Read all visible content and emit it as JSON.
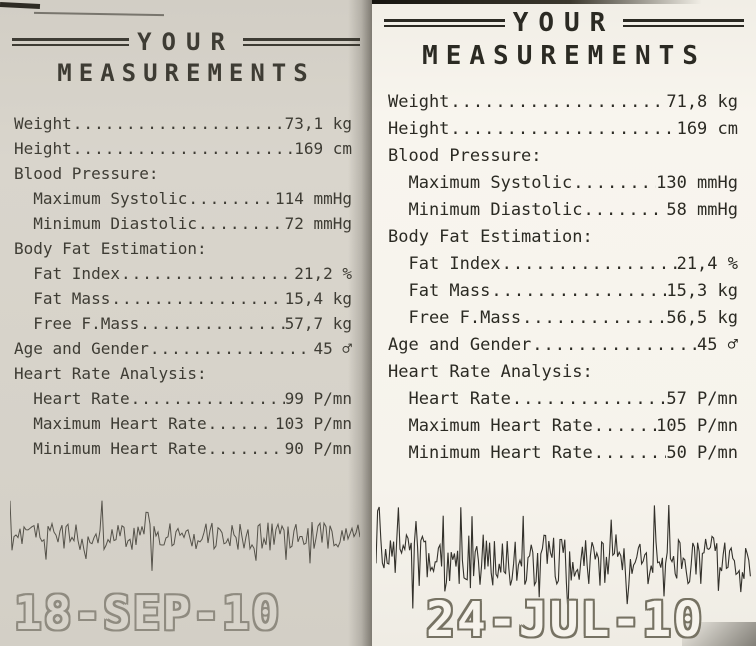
{
  "left_receipt": {
    "header": {
      "line1": "YOUR",
      "line2": "MEASUREMENTS"
    },
    "rows": [
      {
        "label": "Weight",
        "value": "73,1 kg",
        "indent": 0
      },
      {
        "label": "Height",
        "value": "169 cm",
        "indent": 0
      },
      {
        "label": "Blood Pressure:",
        "value": "",
        "indent": 0
      },
      {
        "label": "Maximum Systolic",
        "value": "114 mmHg",
        "indent": 1
      },
      {
        "label": "Minimum Diastolic",
        "value": "72 mmHg",
        "indent": 1
      },
      {
        "label": "Body Fat Estimation:",
        "value": "",
        "indent": 0
      },
      {
        "label": "Fat Index",
        "value": "21,2 %",
        "indent": 1
      },
      {
        "label": "Fat Mass",
        "value": "15,4 kg",
        "indent": 1
      },
      {
        "label": "Free F.Mass",
        "value": "57,7 kg",
        "indent": 1
      },
      {
        "label": "Age and Gender",
        "value": "45 ♂",
        "indent": 0
      },
      {
        "label": "Heart Rate Analysis:",
        "value": "",
        "indent": 0
      },
      {
        "label": "Heart Rate",
        "value": "99 P/mn",
        "indent": 1
      },
      {
        "label": "Maximum Heart Rate",
        "value": "103 P/mn",
        "indent": 1
      },
      {
        "label": "Minimum Heart Rate",
        "value": "90 P/mn",
        "indent": 1
      }
    ],
    "date": "18-SEP-10"
  },
  "right_receipt": {
    "header": {
      "line1": "YOUR",
      "line2": "MEASUREMENTS"
    },
    "rows": [
      {
        "label": "Weight",
        "value": "71,8 kg",
        "indent": 0
      },
      {
        "label": "Height",
        "value": "169 cm",
        "indent": 0
      },
      {
        "label": "Blood Pressure:",
        "value": "",
        "indent": 0
      },
      {
        "label": "Maximum Systolic",
        "value": "130 mmHg",
        "indent": 1
      },
      {
        "label": "Minimum Diastolic",
        "value": "58 mmHg",
        "indent": 1
      },
      {
        "label": "Body Fat Estimation:",
        "value": "",
        "indent": 0
      },
      {
        "label": "Fat Index",
        "value": "21,4 %",
        "indent": 1
      },
      {
        "label": "Fat Mass",
        "value": "15,3 kg",
        "indent": 1
      },
      {
        "label": "Free F.Mass",
        "value": "56,5 kg",
        "indent": 1
      },
      {
        "label": "Age and Gender",
        "value": "45 ♂",
        "indent": 0
      },
      {
        "label": "Heart Rate Analysis:",
        "value": "",
        "indent": 0
      },
      {
        "label": "Heart Rate",
        "value": "57 P/mn",
        "indent": 1
      },
      {
        "label": "Maximum Heart Rate",
        "value": "105 P/mn",
        "indent": 1
      },
      {
        "label": "Minimum Heart Rate",
        "value": "50 P/mn",
        "indent": 1
      }
    ],
    "date": "24-JUL-10"
  }
}
